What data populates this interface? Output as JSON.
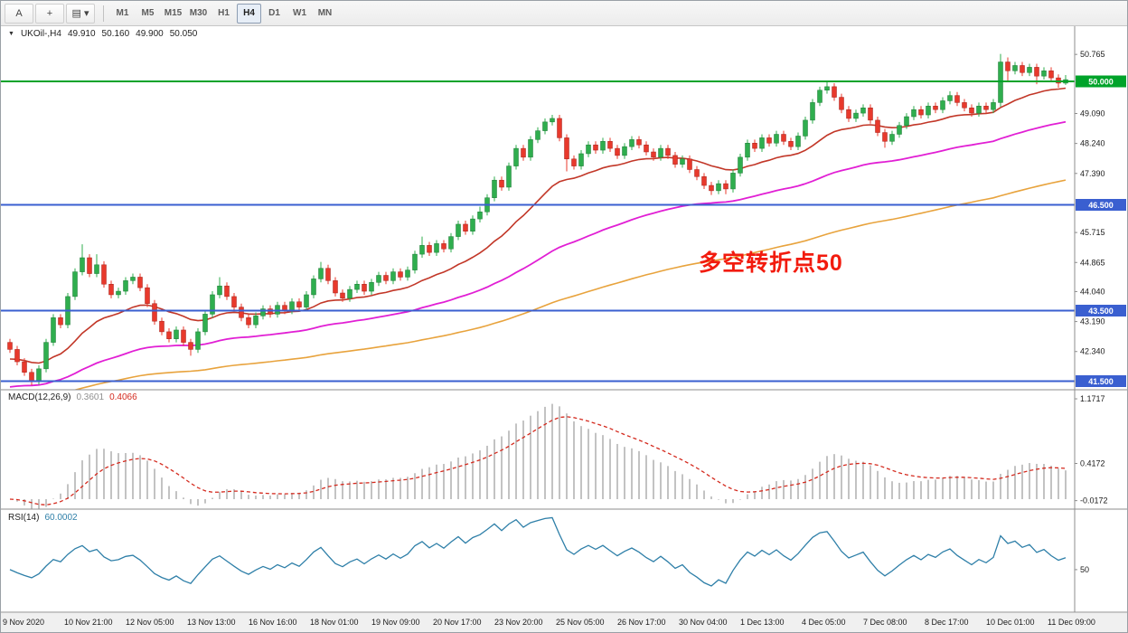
{
  "toolbar": {
    "tools": [
      {
        "name": "cursor-tool-button",
        "label": "A"
      },
      {
        "name": "crosshair-tool-button",
        "label": "+"
      },
      {
        "name": "line-style-dropdown-button",
        "label": "▤",
        "arrow": "▾"
      }
    ],
    "timeframes": [
      "M1",
      "M5",
      "M15",
      "M30",
      "H1",
      "H4",
      "D1",
      "W1",
      "MN"
    ],
    "active_timeframe": "H4"
  },
  "annotation": {
    "text": "多空转折点50"
  },
  "indicator_labels": {
    "macd": {
      "name": "MACD(12,26,9)",
      "main": "0.3601",
      "signal": "0.4066",
      "axis": [
        {
          "text": "1.1717",
          "value": 1.1717
        },
        {
          "text": "0.4172",
          "value": 0.4172
        },
        {
          "text": "-0.0172",
          "value": -0.0172
        }
      ]
    },
    "rsi": {
      "name": "RSI(14)",
      "value": "60.0002",
      "axis": [
        {
          "text": "50",
          "value": 50
        }
      ]
    }
  },
  "colors": {
    "bull": "#2fae4e",
    "bull_border": "#1d7a35",
    "bear": "#e8392c",
    "bear_border": "#a6221a",
    "ma_fast": "#c23728",
    "ma_mid": "#e11fd4",
    "ma_slow": "#e8a33d",
    "macd_hist": "#b4b4b4",
    "macd_signal": "#d42a1e",
    "rsi_line": "#2e7fa8",
    "level_green": "#00a32a",
    "level_blue": "#3a5fd0",
    "annotation": "#f21b0e"
  },
  "chart_data": {
    "type": "candlestick",
    "symbol_label": "UKOil-,H4",
    "symbol": "UKOil-",
    "timeframe": "H4",
    "quote": {
      "open": "49.910",
      "high": "50.160",
      "low": "49.900",
      "close": "50.050"
    },
    "ylim": [
      41.26,
      51.54
    ],
    "x_start": 10,
    "x_step": 8,
    "first_open": 42.6,
    "default_wick": 0.1,
    "closes": [
      42.4,
      42.05,
      41.75,
      41.5,
      41.85,
      42.6,
      43.3,
      43.1,
      43.9,
      44.6,
      45.0,
      44.55,
      44.8,
      44.25,
      43.95,
      44.05,
      44.35,
      44.45,
      44.15,
      43.7,
      43.2,
      42.9,
      42.7,
      42.95,
      42.6,
      42.4,
      42.9,
      43.4,
      43.95,
      44.2,
      43.9,
      43.6,
      43.3,
      43.1,
      43.35,
      43.55,
      43.4,
      43.65,
      43.5,
      43.75,
      43.6,
      43.95,
      44.4,
      44.7,
      44.35,
      44.0,
      43.85,
      44.1,
      44.25,
      44.05,
      44.3,
      44.5,
      44.35,
      44.6,
      44.45,
      44.65,
      45.1,
      45.35,
      45.15,
      45.4,
      45.25,
      45.6,
      45.95,
      45.75,
      46.1,
      46.3,
      46.7,
      47.2,
      47.0,
      47.6,
      48.1,
      47.85,
      48.35,
      48.6,
      48.85,
      48.95,
      48.4,
      47.8,
      47.6,
      47.95,
      48.2,
      48.05,
      48.3,
      48.1,
      47.9,
      48.15,
      48.35,
      48.2,
      48.0,
      47.85,
      48.1,
      47.9,
      47.65,
      47.8,
      47.5,
      47.3,
      47.05,
      46.9,
      47.1,
      46.95,
      47.4,
      47.85,
      48.25,
      48.1,
      48.4,
      48.25,
      48.5,
      48.3,
      48.15,
      48.45,
      48.9,
      49.4,
      49.75,
      49.85,
      49.55,
      49.2,
      48.95,
      49.1,
      49.25,
      48.9,
      48.55,
      48.3,
      48.5,
      48.75,
      49.0,
      49.2,
      49.05,
      49.3,
      49.2,
      49.45,
      49.6,
      49.4,
      49.25,
      49.1,
      49.3,
      49.2,
      49.4,
      50.55,
      50.3,
      50.45,
      50.25,
      50.4,
      50.15,
      50.3,
      50.1,
      49.95,
      50.05
    ],
    "wick_overrides": {
      "3": {
        "l": 41.38
      },
      "10": {
        "h": 45.38
      },
      "12": {
        "h": 45.1
      },
      "25": {
        "l": 42.22
      },
      "29": {
        "h": 44.45
      },
      "43": {
        "h": 44.88
      },
      "57": {
        "h": 45.6
      },
      "65": {
        "h": 46.45
      },
      "75": {
        "h": 49.05
      },
      "77": {
        "l": 47.45
      },
      "97": {
        "l": 46.78
      },
      "99": {
        "l": 46.8
      },
      "113": {
        "h": 50.02
      },
      "121": {
        "l": 48.12
      },
      "130": {
        "h": 49.72
      },
      "137": {
        "h": 50.78,
        "l": 49.28
      },
      "138": {
        "h": 50.68,
        "l": 50.02
      },
      "142": {
        "l": 49.92
      },
      "145": {
        "l": 49.82
      },
      "146": {
        "h": 50.18,
        "l": 49.9
      }
    },
    "price_axis_labels": [
      {
        "text": "50.765",
        "value": 50.765
      },
      {
        "text": "49.090",
        "value": 49.09
      },
      {
        "text": "48.240",
        "value": 48.24
      },
      {
        "text": "47.390",
        "value": 47.39
      },
      {
        "text": "45.715",
        "value": 45.715
      },
      {
        "text": "44.865",
        "value": 44.865
      },
      {
        "text": "44.040",
        "value": 44.04
      },
      {
        "text": "43.190",
        "value": 43.19
      },
      {
        "text": "42.340",
        "value": 42.34
      }
    ],
    "levels": [
      {
        "label": "50.000",
        "value": 50.0,
        "color": "#00a32a",
        "width": 2
      },
      {
        "label": "46.500",
        "value": 46.5,
        "color": "#3a5fd0",
        "width": 2
      },
      {
        "label": "43.500",
        "value": 43.5,
        "color": "#3a5fd0",
        "width": 2
      },
      {
        "label": "41.500",
        "value": 41.5,
        "color": "#3a5fd0",
        "width": 2
      }
    ],
    "indicators": {
      "macd": {
        "fast": 12,
        "slow": 26,
        "signal": 9,
        "current_main": 0.3601,
        "current_signal": 0.4066
      },
      "rsi": {
        "period": 14,
        "current": 60.0002
      },
      "mas": [
        {
          "period": 20,
          "seed": 42.1,
          "color": "#c23728",
          "width": 1.6
        },
        {
          "period": 60,
          "seed": 41.3,
          "color": "#e11fd4",
          "width": 1.8
        },
        {
          "period": 130,
          "seed": 41.0,
          "color": "#e8a33d",
          "width": 1.6
        }
      ]
    },
    "time_labels": [
      "9 Nov 2020",
      "10 Nov 21:00",
      "12 Nov 05:00",
      "13 Nov 13:00",
      "16 Nov 16:00",
      "18 Nov 01:00",
      "19 Nov 09:00",
      "20 Nov 17:00",
      "23 Nov 20:00",
      "25 Nov 05:00",
      "26 Nov 17:00",
      "30 Nov 04:00",
      "1 Dec 13:00",
      "4 Dec 05:00",
      "7 Dec 08:00",
      "8 Dec 17:00",
      "10 Dec 01:00",
      "11 Dec 09:00"
    ]
  }
}
